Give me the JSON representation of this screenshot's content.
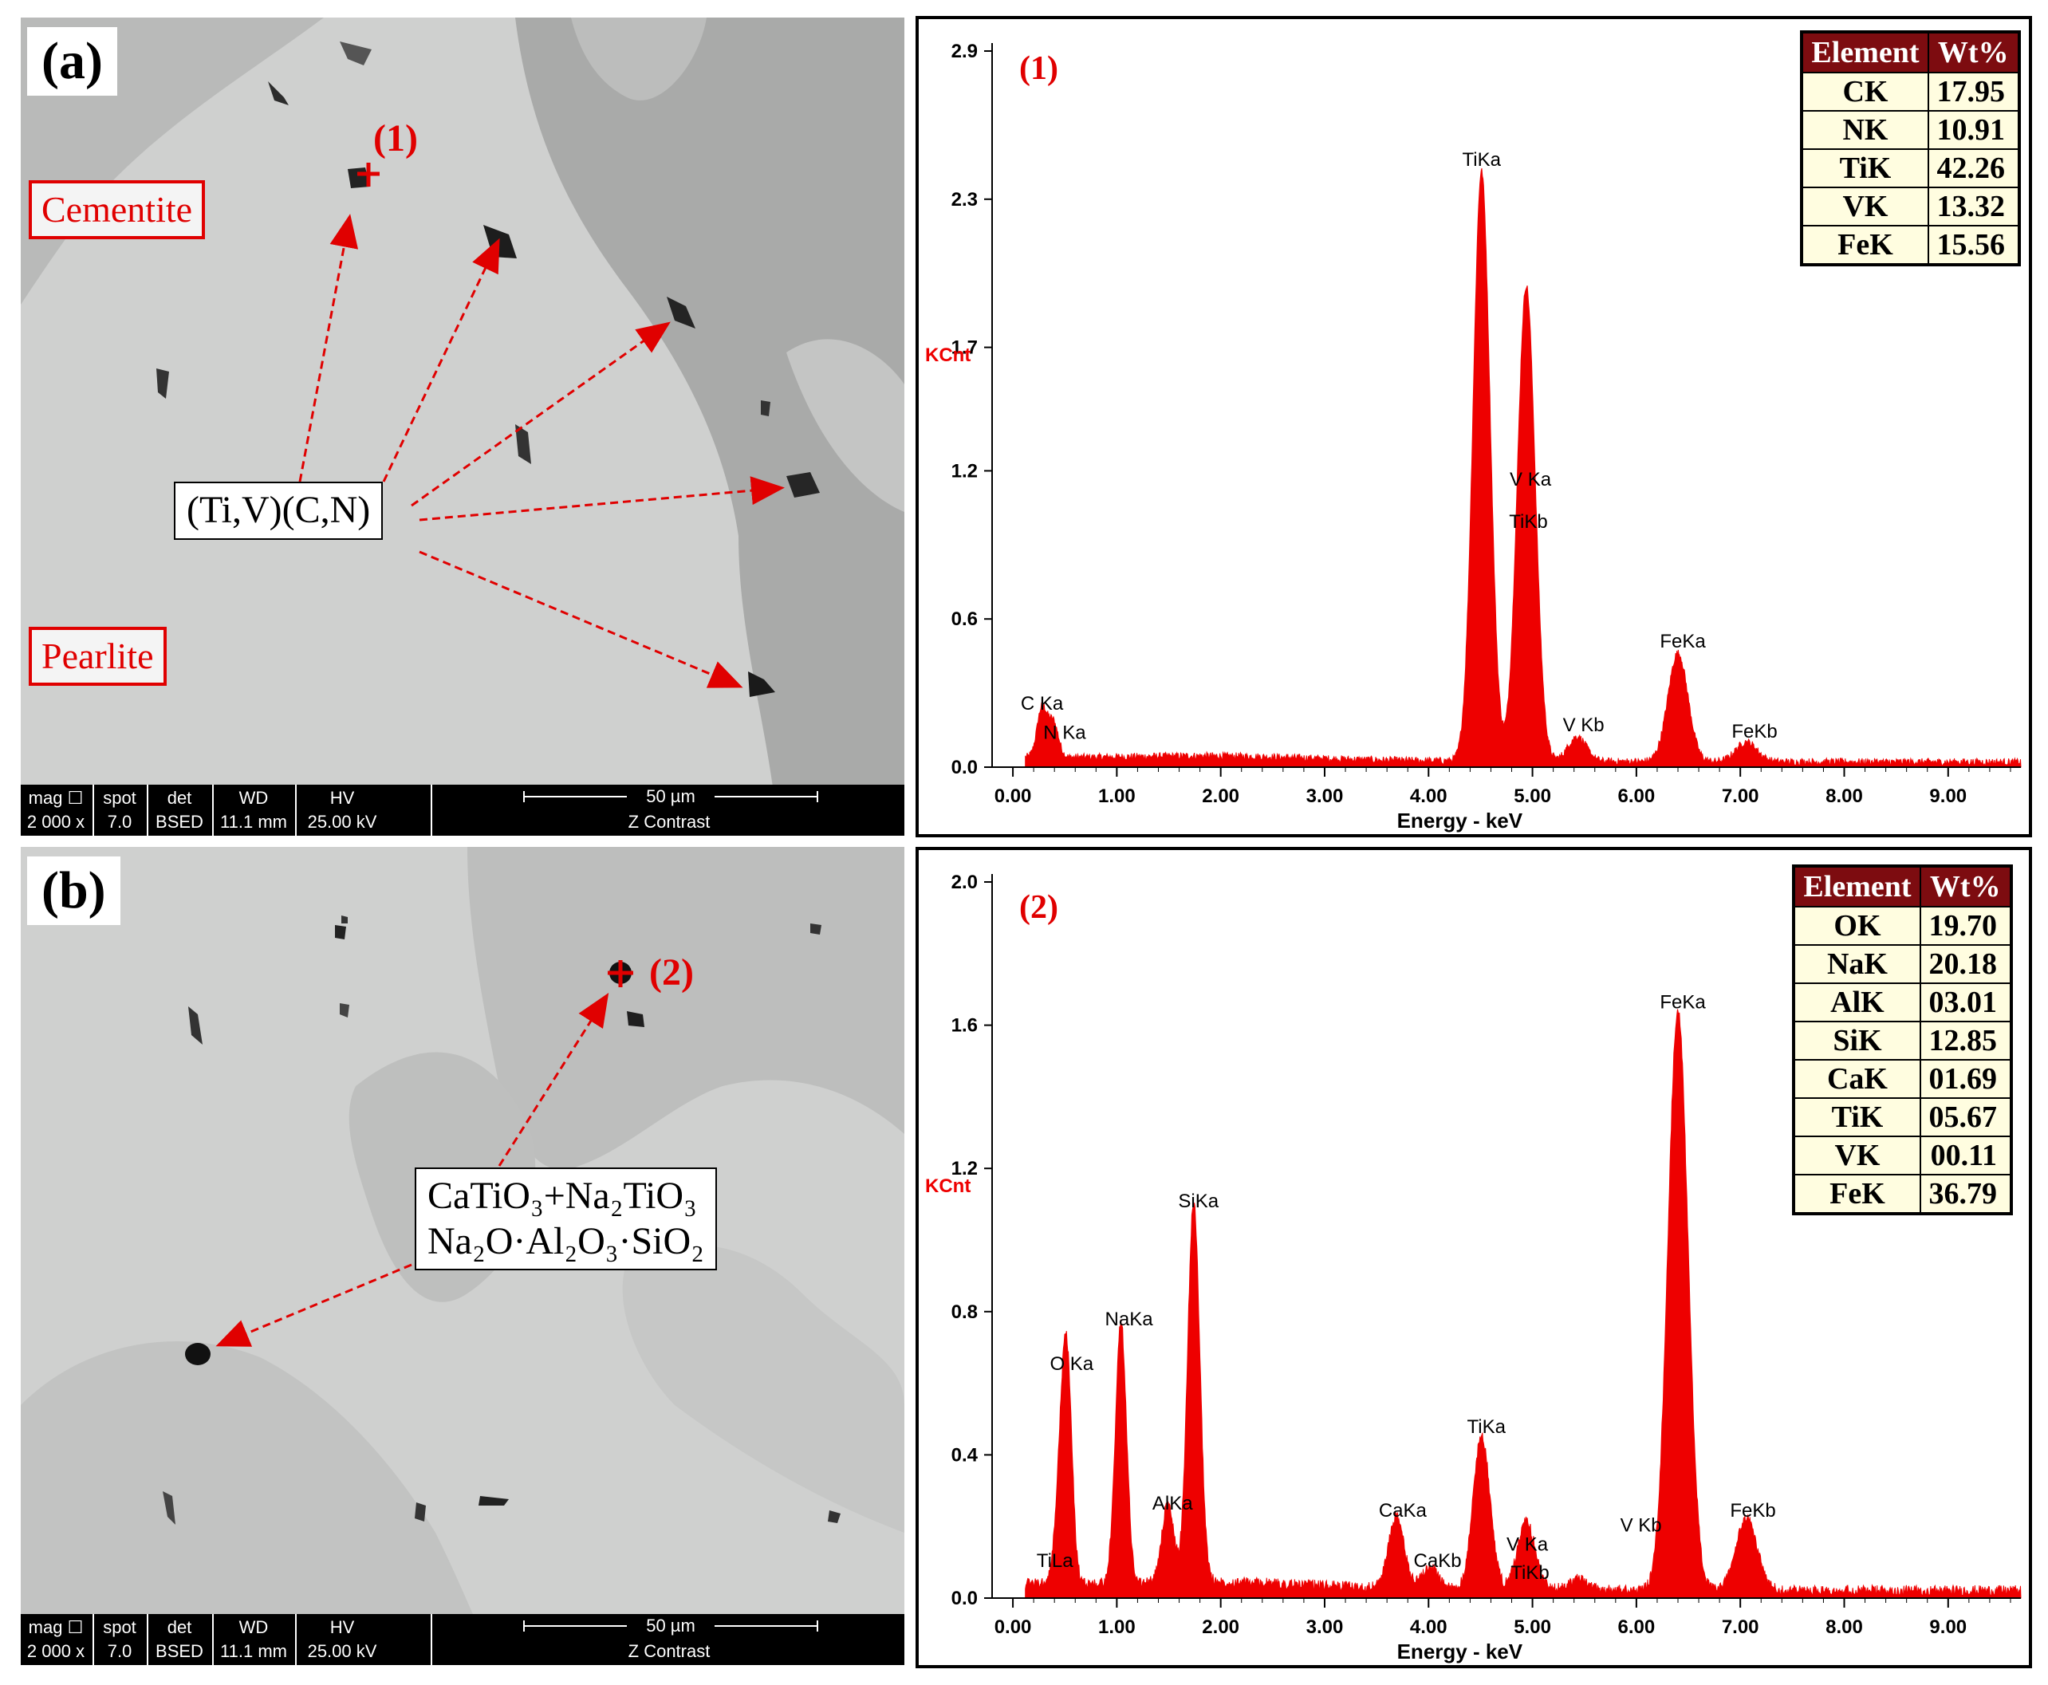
{
  "panels": [
    {
      "id": "a",
      "label": "(a)",
      "phase_labels": [
        "Cementite",
        "Pearlite"
      ],
      "callout_lines": [
        "(Ti,V)(C,N)"
      ],
      "point_tag": "(1)"
    },
    {
      "id": "b",
      "label": "(b)",
      "phase_labels": [],
      "callout_lines": [
        "CaTiO₃+Na₂TiO₃",
        "Na₂O·Al₂O₃·SiO₂"
      ],
      "point_tag": "(2)"
    }
  ],
  "sem_infobar": {
    "headers": [
      "mag ☐",
      "spot",
      "det",
      "WD",
      "HV"
    ],
    "values": [
      "2 000 x",
      "7.0",
      "BSED",
      "11.1 mm",
      "25.00 kV"
    ],
    "scale_label": "50 µm",
    "mode": "Z Contrast"
  },
  "colors": {
    "spectrum": "#ee0000",
    "table_header": "#7d0c10",
    "table_cell": "#fffde0",
    "annotation": "#e00000"
  },
  "chart_data": [
    {
      "type": "area",
      "title": "(1)",
      "xlabel": "Energy - keV",
      "ylabel": "KCnt",
      "xlim": [
        -0.2,
        9.7
      ],
      "ylim": [
        0,
        2.9
      ],
      "x_ticks": [
        "0.00",
        "1.00",
        "2.00",
        "3.00",
        "4.00",
        "5.00",
        "6.00",
        "7.00",
        "8.00",
        "9.00"
      ],
      "y_ticks": [
        "0.0",
        "0.6",
        "1.2",
        "1.7",
        "2.3",
        "2.9"
      ],
      "peaks": [
        {
          "label": "C Ka",
          "x": 0.28,
          "y": 0.2
        },
        {
          "label": "N Ka",
          "x": 0.39,
          "y": 0.14
        },
        {
          "label": "TiKa",
          "x": 4.51,
          "y": 2.39
        },
        {
          "label": "V Ka",
          "x": 4.95,
          "y": 1.01
        },
        {
          "label": "TiKb",
          "x": 4.93,
          "y": 0.93
        },
        {
          "label": "V Kb",
          "x": 5.43,
          "y": 0.1
        },
        {
          "label": "FeKa",
          "x": 6.4,
          "y": 0.44
        },
        {
          "label": "FeKb",
          "x": 7.06,
          "y": 0.08
        }
      ],
      "table": {
        "headers": [
          "Element",
          "Wt%"
        ],
        "rows": [
          [
            "CK",
            "17.95"
          ],
          [
            "NK",
            "10.91"
          ],
          [
            "TiK",
            "42.26"
          ],
          [
            "VK",
            "13.32"
          ],
          [
            "FeK",
            "15.56"
          ]
        ]
      }
    },
    {
      "type": "area",
      "title": "(2)",
      "xlabel": "Energy - keV",
      "ylabel": "KCnt",
      "xlim": [
        -0.2,
        9.7
      ],
      "ylim": [
        0,
        2.0
      ],
      "x_ticks": [
        "0.00",
        "1.00",
        "2.00",
        "3.00",
        "4.00",
        "5.00",
        "6.00",
        "7.00",
        "8.00",
        "9.00"
      ],
      "y_ticks": [
        "0.0",
        "0.4",
        "0.8",
        "1.2",
        "1.6",
        "2.0"
      ],
      "peaks": [
        {
          "label": "O Ka",
          "x": 0.52,
          "y": 0.61
        },
        {
          "label": "TiLa",
          "x": 0.45,
          "y": 0.22
        },
        {
          "label": "NaKa",
          "x": 1.04,
          "y": 0.73
        },
        {
          "label": "AlKa",
          "x": 1.49,
          "y": 0.22
        },
        {
          "label": "SiKa",
          "x": 1.74,
          "y": 1.06
        },
        {
          "label": "CaKa",
          "x": 3.69,
          "y": 0.2
        },
        {
          "label": "CaKb",
          "x": 4.01,
          "y": 0.06
        },
        {
          "label": "TiKa",
          "x": 4.51,
          "y": 0.43
        },
        {
          "label": "V Ka",
          "x": 4.95,
          "y": 0.11
        },
        {
          "label": "TiKb",
          "x": 4.93,
          "y": 0.08
        },
        {
          "label": "V Kb",
          "x": 5.43,
          "y": 0.03
        },
        {
          "label": "FeKa",
          "x": 6.4,
          "y": 1.62
        },
        {
          "label": "FeKb",
          "x": 7.06,
          "y": 0.2
        }
      ],
      "table": {
        "headers": [
          "Element",
          "Wt%"
        ],
        "rows": [
          [
            "OK",
            "19.70"
          ],
          [
            "NaK",
            "20.18"
          ],
          [
            "AlK",
            "03.01"
          ],
          [
            "SiK",
            "12.85"
          ],
          [
            "CaK",
            "01.69"
          ],
          [
            "TiK",
            "05.67"
          ],
          [
            "VK",
            "00.11"
          ],
          [
            "FeK",
            "36.79"
          ]
        ]
      }
    }
  ]
}
